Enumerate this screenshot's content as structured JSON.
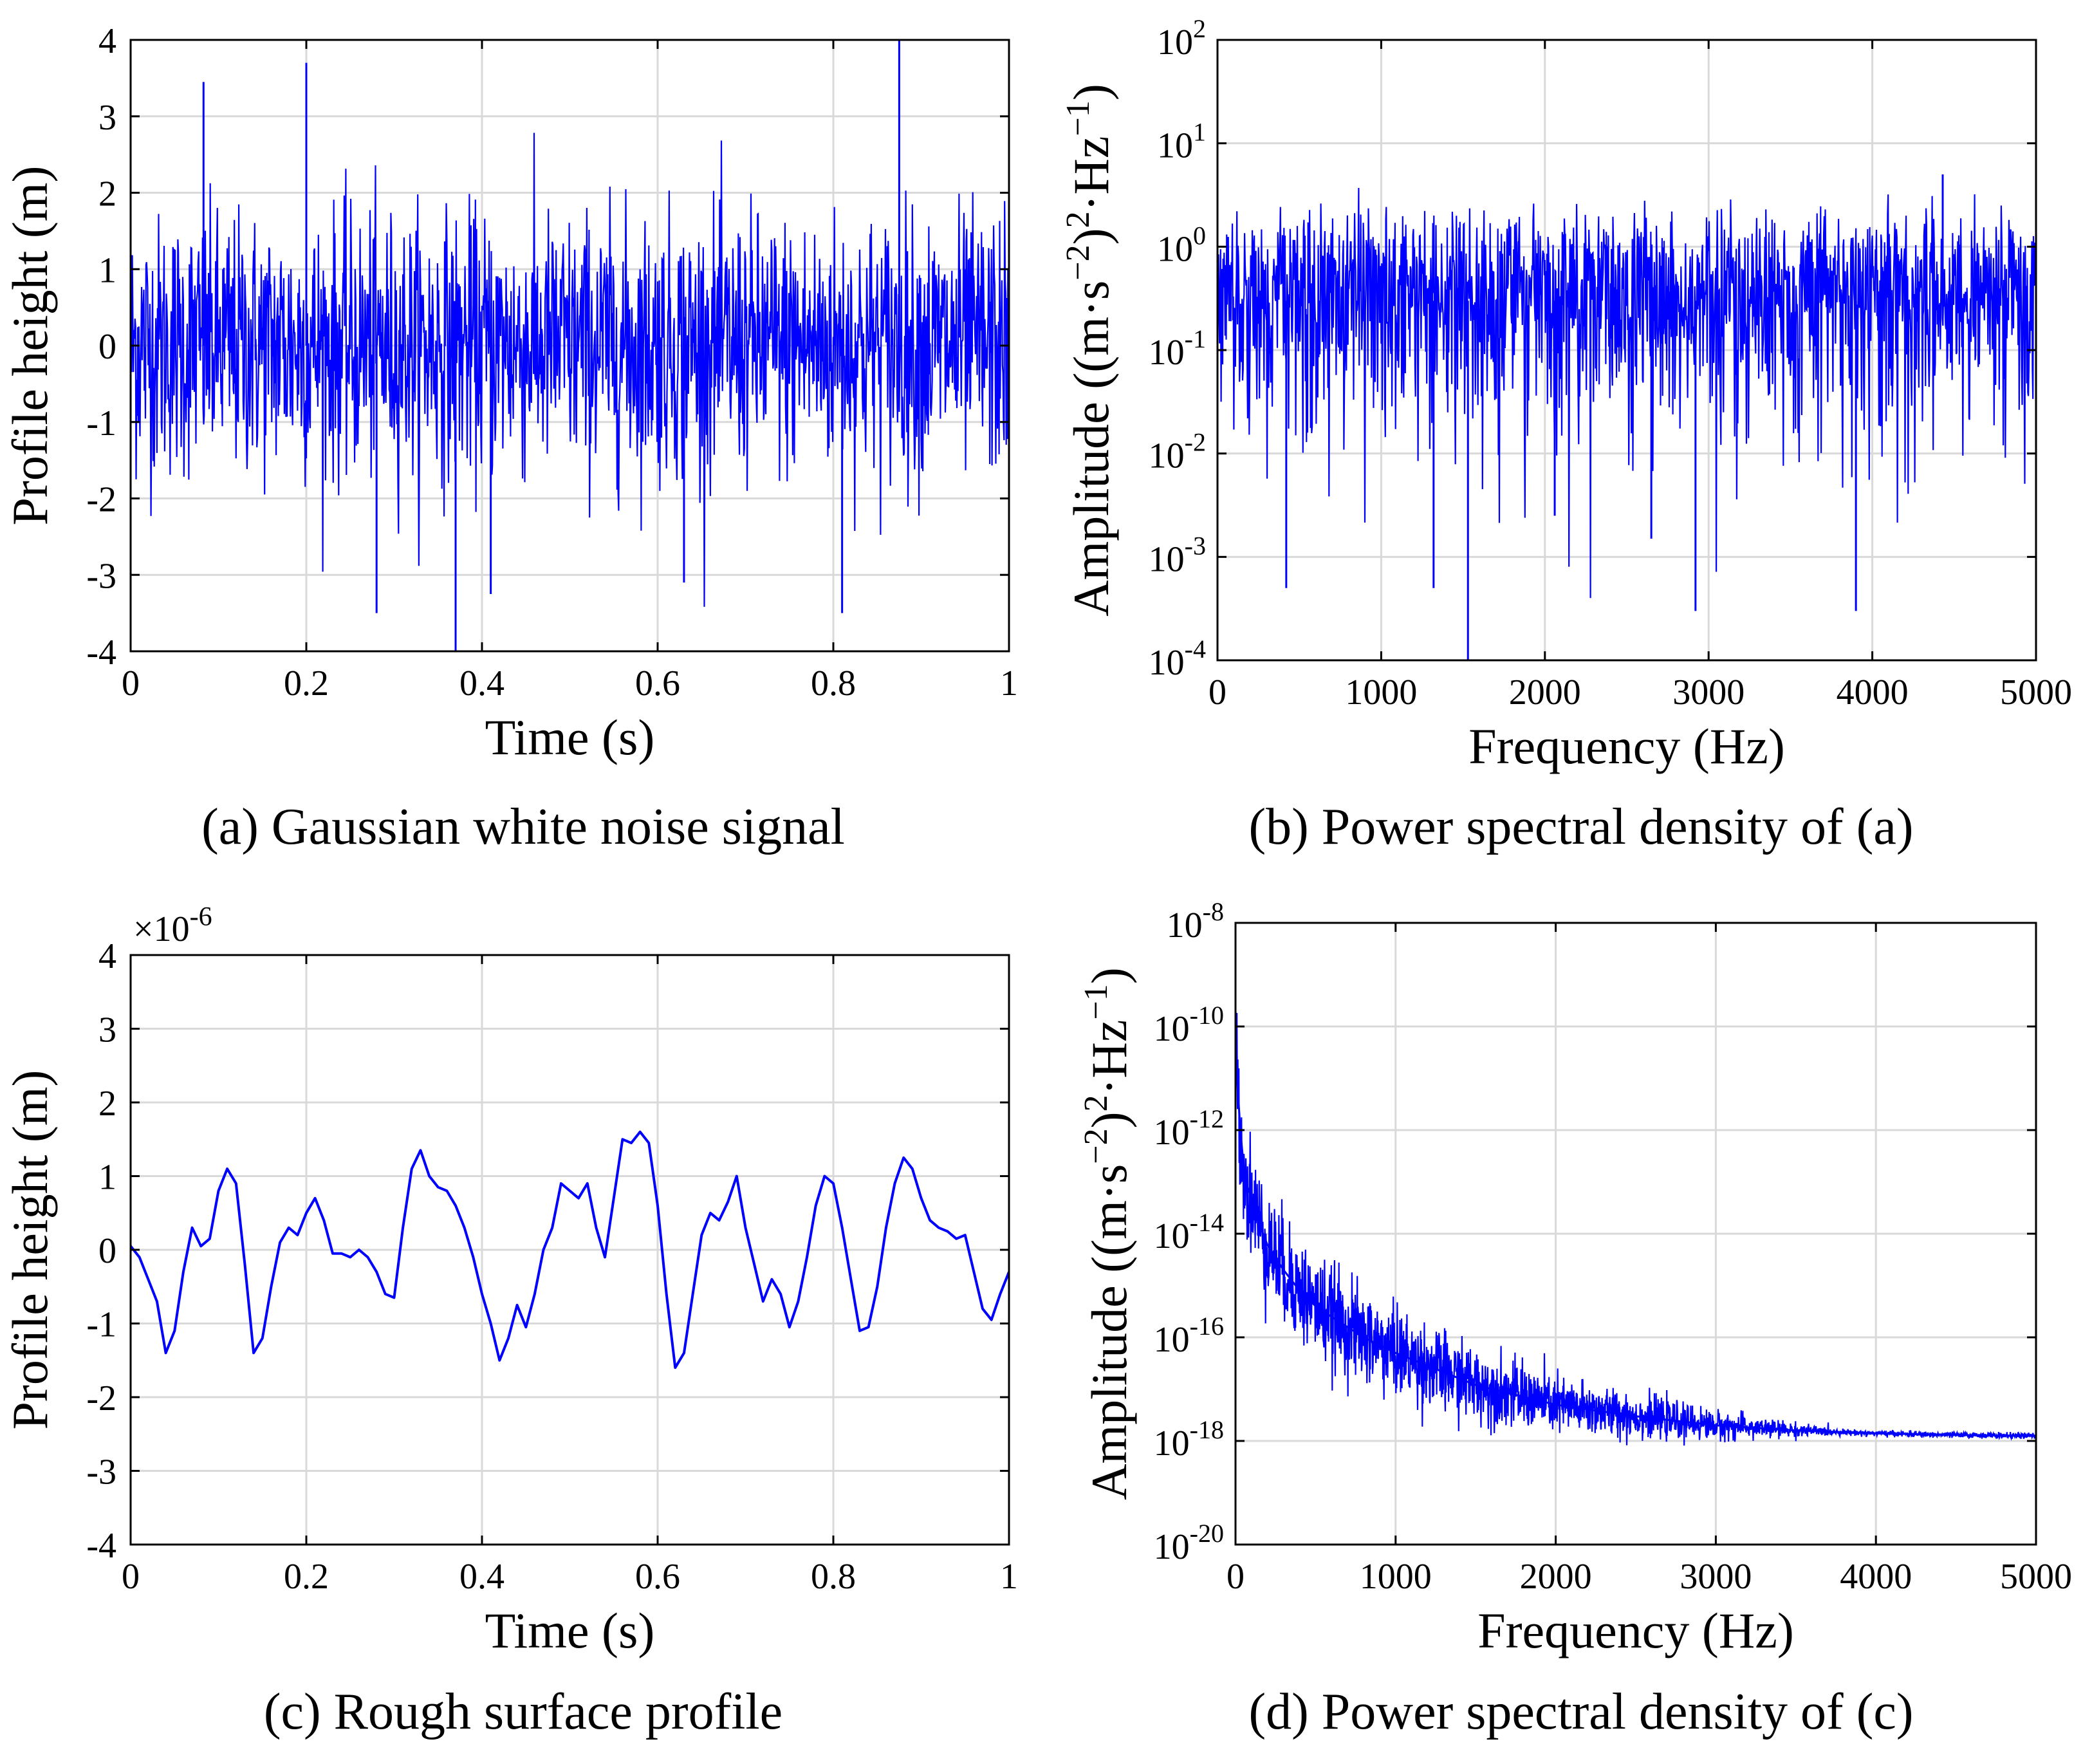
{
  "chart_data": [
    {
      "id": "a",
      "type": "line",
      "caption": "(a) Gaussian white noise signal",
      "xlabel": "Time (s)",
      "ylabel": "Profile height (m)",
      "xlim": [
        0,
        1
      ],
      "ylim": [
        -4,
        4
      ],
      "xticks": [
        0,
        0.2,
        0.4,
        0.6,
        0.8,
        1
      ],
      "xtick_labels": [
        "0",
        "0.2",
        "0.4",
        "0.6",
        "0.8",
        "1"
      ],
      "yticks": [
        -4,
        -3,
        -2,
        -1,
        0,
        1,
        2,
        3,
        4
      ],
      "ytick_labels": [
        "-4",
        "-3",
        "-2",
        "-1",
        "0",
        "1",
        "2",
        "3",
        "4"
      ],
      "grid": true,
      "color": "#0000ff",
      "signal": {
        "kind": "gaussian_noise",
        "std": 0.85,
        "samples": 1600,
        "range": [
          -4,
          4
        ]
      },
      "x": [
        0,
        0.083,
        0.2,
        0.28,
        0.37,
        0.41,
        0.63,
        0.81,
        0.875,
        1
      ],
      "y": [
        2.6,
        3.45,
        3.7,
        -3.5,
        -4.0,
        -3.25,
        -3.1,
        -3.5,
        4.0,
        1.8
      ]
    },
    {
      "id": "b",
      "type": "line",
      "caption": "(b) Power spectral density of (a)",
      "xlabel": "Frequency (Hz)",
      "ylabel_parts": [
        "Amplitude ((m·s",
        "−2",
        ")",
        "2",
        "·Hz",
        "−1",
        ")"
      ],
      "xlim": [
        0,
        5000
      ],
      "ylim": [
        0.0001,
        100
      ],
      "yscale": "log",
      "xticks": [
        0,
        1000,
        2000,
        3000,
        4000,
        5000
      ],
      "xtick_labels": [
        "0",
        "1000",
        "2000",
        "3000",
        "4000",
        "5000"
      ],
      "yticks": [
        0.0001,
        0.001,
        0.01,
        0.1,
        1,
        10,
        100
      ],
      "ytick_base": "10",
      "ytick_exps": [
        "-4",
        "-3",
        "-2",
        "-1",
        "0",
        "1",
        "2"
      ],
      "grid": true,
      "color": "#0000ff",
      "signal": {
        "kind": "chi_square_spectrum",
        "mean": 0.5,
        "samples": 1600
      },
      "x": [
        420,
        1320,
        1530,
        2060,
        2650,
        2920,
        3900,
        4430
      ],
      "y": [
        0.0005,
        0.0005,
        0.0001,
        0.0025,
        0.0015,
        0.0003,
        0.0003,
        5.0
      ]
    },
    {
      "id": "c",
      "type": "line",
      "caption": "(c) Rough surface profile",
      "xlabel": "Time (s)",
      "ylabel": "Profile height (m)",
      "multiplier_base": "×10",
      "multiplier_exp": "-6",
      "xlim": [
        0,
        1
      ],
      "ylim": [
        -4,
        4
      ],
      "xticks": [
        0,
        0.2,
        0.4,
        0.6,
        0.8,
        1
      ],
      "xtick_labels": [
        "0",
        "0.2",
        "0.4",
        "0.6",
        "0.8",
        "1"
      ],
      "yticks": [
        -4,
        -3,
        -2,
        -1,
        0,
        1,
        2,
        3,
        4
      ],
      "ytick_labels": [
        "-4",
        "-3",
        "-2",
        "-1",
        "0",
        "1",
        "2",
        "3",
        "4"
      ],
      "grid": true,
      "color": "#0000ff",
      "x": [
        0,
        0.01,
        0.02,
        0.03,
        0.04,
        0.05,
        0.06,
        0.07,
        0.08,
        0.09,
        0.1,
        0.11,
        0.12,
        0.13,
        0.14,
        0.15,
        0.16,
        0.17,
        0.18,
        0.19,
        0.2,
        0.21,
        0.22,
        0.23,
        0.24,
        0.25,
        0.26,
        0.27,
        0.28,
        0.29,
        0.3,
        0.31,
        0.32,
        0.33,
        0.34,
        0.35,
        0.36,
        0.37,
        0.38,
        0.39,
        0.4,
        0.41,
        0.42,
        0.43,
        0.44,
        0.45,
        0.46,
        0.47,
        0.48,
        0.49,
        0.5,
        0.51,
        0.52,
        0.53,
        0.54,
        0.55,
        0.56,
        0.57,
        0.58,
        0.59,
        0.6,
        0.61,
        0.62,
        0.63,
        0.64,
        0.65,
        0.66,
        0.67,
        0.68,
        0.69,
        0.7,
        0.71,
        0.72,
        0.73,
        0.74,
        0.75,
        0.76,
        0.77,
        0.78,
        0.79,
        0.8,
        0.81,
        0.82,
        0.83,
        0.84,
        0.85,
        0.86,
        0.87,
        0.88,
        0.89,
        0.9,
        0.91,
        0.92,
        0.93,
        0.94,
        0.95,
        0.96,
        0.97,
        0.98,
        0.99,
        1
      ],
      "y": [
        0.05,
        -0.1,
        -0.4,
        -0.7,
        -1.4,
        -1.1,
        -0.3,
        0.3,
        0.05,
        0.15,
        0.8,
        1.1,
        0.9,
        -0.2,
        -1.4,
        -1.2,
        -0.5,
        0.1,
        0.3,
        0.2,
        0.5,
        0.7,
        0.4,
        -0.05,
        -0.05,
        -0.1,
        0.0,
        -0.1,
        -0.3,
        -0.6,
        -0.65,
        0.3,
        1.1,
        1.35,
        1.0,
        0.85,
        0.8,
        0.6,
        0.3,
        -0.1,
        -0.6,
        -1.0,
        -1.5,
        -1.2,
        -0.75,
        -1.05,
        -0.6,
        0.0,
        0.3,
        0.9,
        0.8,
        0.7,
        0.9,
        0.3,
        -0.1,
        0.7,
        1.5,
        1.45,
        1.6,
        1.45,
        0.6,
        -0.6,
        -1.6,
        -1.4,
        -0.6,
        0.2,
        0.5,
        0.4,
        0.65,
        1.0,
        0.3,
        -0.2,
        -0.7,
        -0.4,
        -0.6,
        -1.05,
        -0.7,
        -0.1,
        0.6,
        1.0,
        0.9,
        0.3,
        -0.4,
        -1.1,
        -1.05,
        -0.5,
        0.3,
        0.9,
        1.25,
        1.1,
        0.7,
        0.4,
        0.3,
        0.25,
        0.15,
        0.2,
        -0.3,
        -0.8,
        -0.95,
        -0.6,
        -0.3
      ]
    },
    {
      "id": "d",
      "type": "line",
      "caption": "(d) Power spectral density of (c)",
      "xlabel": "Frequency (Hz)",
      "ylabel_parts": [
        "Amplitude ((m·s",
        "−2",
        ")",
        "2",
        "·Hz",
        "−1",
        ")"
      ],
      "xlim": [
        0,
        5000
      ],
      "ylim": [
        1e-20,
        1e-08
      ],
      "yscale": "log",
      "xticks": [
        0,
        1000,
        2000,
        3000,
        4000,
        5000
      ],
      "xtick_labels": [
        "0",
        "1000",
        "2000",
        "3000",
        "4000",
        "5000"
      ],
      "yticks": [
        1e-20,
        1e-18,
        1e-16,
        1e-14,
        1e-12,
        1e-10,
        1e-08
      ],
      "ytick_base": "10",
      "ytick_exps": [
        "-20",
        "-18",
        "-16",
        "-14",
        "-12",
        "-10",
        "-8"
      ],
      "grid": true,
      "color": "#0000ff",
      "x": [
        0,
        10,
        30,
        60,
        100,
        150,
        200,
        300,
        400,
        500,
        600,
        800,
        1000,
        1500,
        2000,
        2500,
        3000,
        3500,
        4000,
        4500,
        5000
      ],
      "y": [
        1e-10,
        1e-11,
        1e-12,
        1e-13,
        5e-14,
        1.5e-14,
        6e-15,
        2e-15,
        8e-16,
        4e-16,
        2.5e-16,
        1e-16,
        5e-17,
        1.2e-17,
        5e-18,
        3e-18,
        2e-18,
        1.6e-18,
        1.4e-18,
        1.3e-18,
        1.25e-18
      ],
      "scatter_band_decades": 0.55
    }
  ]
}
